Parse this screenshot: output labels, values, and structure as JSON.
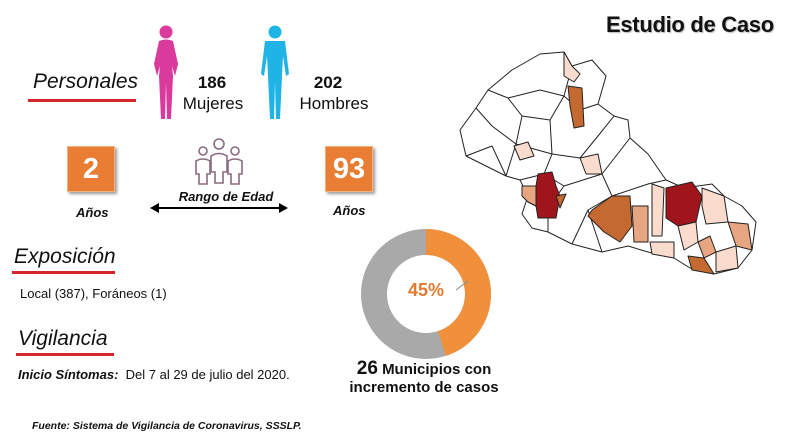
{
  "header": {
    "title": "Estudio de Caso"
  },
  "personales": {
    "heading": "Personales",
    "women": {
      "count": "186",
      "label": "Mujeres",
      "color": "#d93a9b"
    },
    "men": {
      "count": "202",
      "label": "Hombres",
      "color": "#1fb4e5"
    }
  },
  "age": {
    "min_value": "2",
    "min_unit": "Años",
    "max_value": "93",
    "max_unit": "Años",
    "range_label": "Rango de Edad",
    "box_color": "#e97d33"
  },
  "exposicion": {
    "heading": "Exposición",
    "text": "Local (387), Foráneos (1)"
  },
  "vigilancia": {
    "heading": "Vigilancia",
    "onset_label": "Inicio Síntomas:",
    "onset_value": "Del 7 al 29 de julio del 2020."
  },
  "donut": {
    "percent_label": "45%",
    "fraction": 0.45,
    "fill_color": "#f0903a",
    "rest_color": "#a9a9a9"
  },
  "municipios": {
    "count": "26",
    "line1": "Municipios con",
    "line2": "incremento de casos"
  },
  "footer": {
    "source": "Fuente: Sistema de Vigilancia de Coronavirus, SSSLP."
  },
  "map": {
    "colors": {
      "none": "#ffffff",
      "low": "#f9dccd",
      "mid": "#e8a582",
      "high": "#c4692f",
      "top": "#a0151b"
    }
  }
}
